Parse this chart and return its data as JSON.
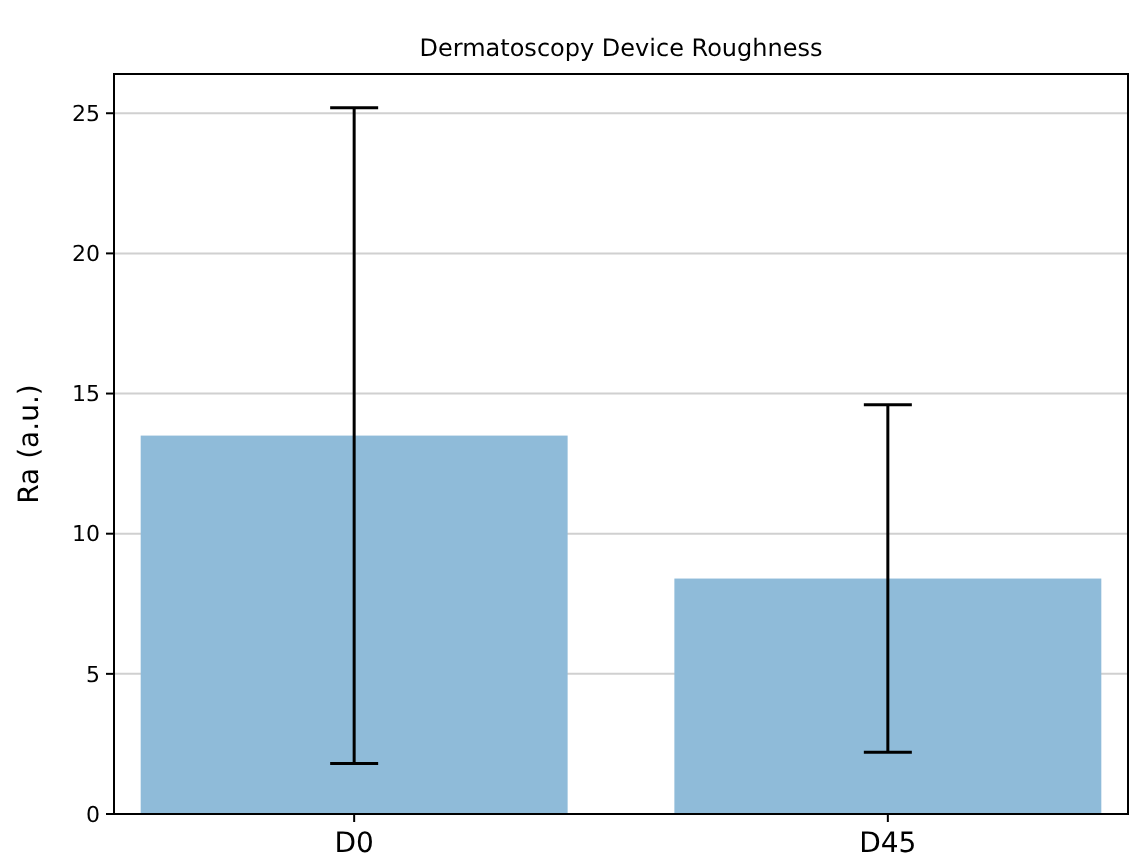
{
  "chart_data": {
    "type": "bar",
    "title": "Dermatoscopy Device Roughness",
    "ylabel": "Ra (a.u.)",
    "categories": [
      "D0",
      "D45"
    ],
    "values": [
      13.5,
      8.4
    ],
    "errors": [
      11.7,
      6.2
    ],
    "color": "#8fbbd9",
    "ylim": [
      0,
      26.4
    ],
    "yticks": [
      0,
      5,
      10,
      15,
      20,
      25
    ],
    "grid": "y"
  }
}
